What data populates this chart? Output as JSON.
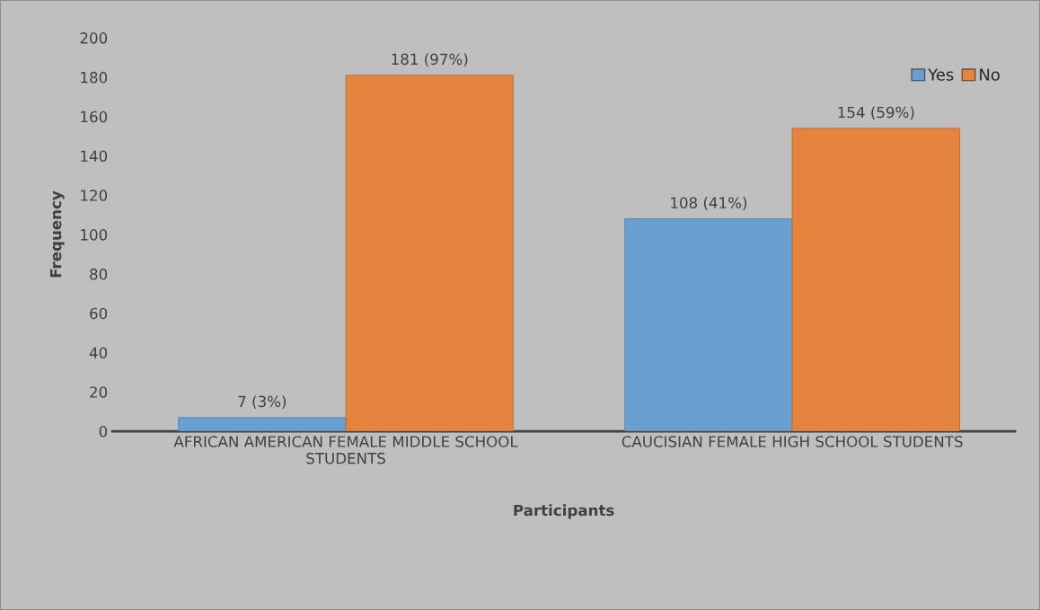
{
  "chart_data": {
    "type": "bar",
    "xlabel": "Participants",
    "ylabel": "Frequency",
    "categories": [
      "AFRICAN AMERICAN FEMALE MIDDLE SCHOOL STUDENTS",
      "CAUCISIAN FEMALE HIGH SCHOOL STUDENTS"
    ],
    "series": [
      {
        "name": "Yes",
        "color": "#699fd1",
        "values": [
          7,
          108
        ],
        "value_labels": [
          "7 (3%)",
          "108 (41%)"
        ]
      },
      {
        "name": "No",
        "color": "#e5843f",
        "values": [
          181,
          154
        ],
        "value_labels": [
          "181 (97%)",
          "154 (59%)"
        ]
      }
    ],
    "ylim": [
      0,
      200
    ],
    "yticks": [
      0,
      20,
      40,
      60,
      80,
      100,
      120,
      140,
      160,
      180,
      200
    ],
    "grid": false,
    "legend": "top right"
  }
}
